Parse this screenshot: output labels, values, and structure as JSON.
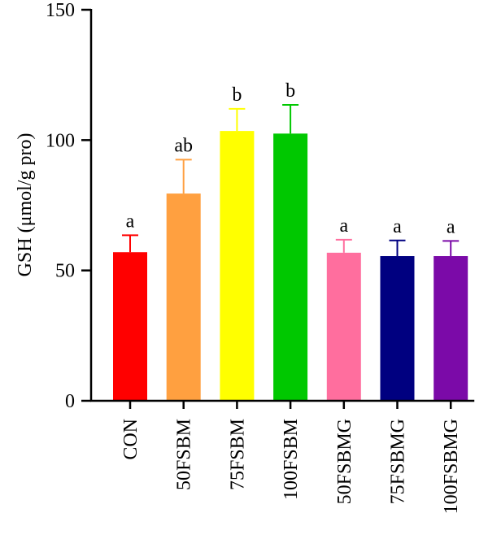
{
  "chart_data": {
    "type": "bar",
    "categories": [
      "CON",
      "50FSBM",
      "75FSBM",
      "100FSBM",
      "50FSBMG",
      "75FSBMG",
      "100FSBMG"
    ],
    "values": [
      57,
      79.5,
      103.5,
      102.5,
      56.8,
      55.5,
      55.5
    ],
    "errors": [
      6.5,
      13,
      8.5,
      11,
      5,
      6,
      5.8
    ],
    "significance": [
      "a",
      "ab",
      "b",
      "b",
      "a",
      "a",
      "a"
    ],
    "colors": [
      "#ff0000",
      "#ffa040",
      "#ffff00",
      "#00c800",
      "#ff6e9e",
      "#000080",
      "#7b0aa8"
    ],
    "ylabel": "GSH (μmol/g pro)",
    "xlabel": "",
    "ylim": [
      0,
      150
    ],
    "yticks": [
      0,
      50,
      100,
      150
    ],
    "grid": false,
    "legend": "none"
  }
}
